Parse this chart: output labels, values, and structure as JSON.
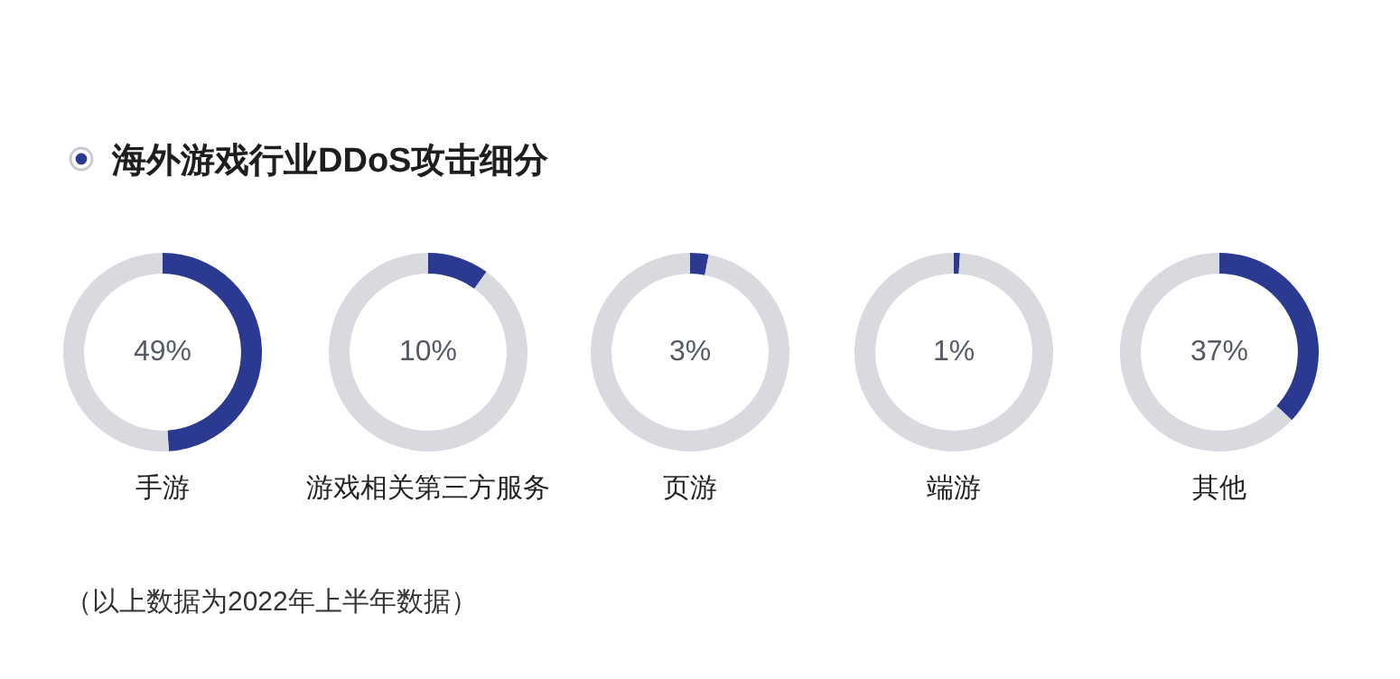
{
  "chart_data": [
    {
      "type": "other",
      "title": "海外游戏行业DDoS攻击细分",
      "annotations": [
        "（以上数据为2022年上半年数据）"
      ]
    },
    {
      "type": "donut",
      "title": "手游",
      "categories": [
        null,
        null
      ],
      "values": [
        49,
        51
      ],
      "colors": [
        "#2b3990",
        "#d9dadf"
      ],
      "value_labels": [
        "49%",
        null
      ]
    },
    {
      "type": "donut",
      "title": "游戏相关第三方服务",
      "categories": [
        null,
        null
      ],
      "values": [
        10,
        90
      ],
      "colors": [
        "#2b3990",
        "#d9dadf"
      ],
      "value_labels": [
        "10%",
        null
      ]
    },
    {
      "type": "donut",
      "title": "页游",
      "categories": [
        null,
        null
      ],
      "values": [
        3,
        97
      ],
      "colors": [
        "#2b3990",
        "#d9dadf"
      ],
      "value_labels": [
        "3%",
        null
      ]
    },
    {
      "type": "donut",
      "title": "端游",
      "categories": [
        null,
        null
      ],
      "values": [
        1,
        99
      ],
      "colors": [
        "#2b3990",
        "#d9dadf"
      ],
      "value_labels": [
        "1%",
        null
      ]
    },
    {
      "type": "donut",
      "title": "其他",
      "categories": [
        null,
        null
      ],
      "values": [
        37,
        63
      ],
      "colors": [
        "#2b3990",
        "#d9dadf"
      ],
      "value_labels": [
        "37%",
        null
      ]
    }
  ]
}
